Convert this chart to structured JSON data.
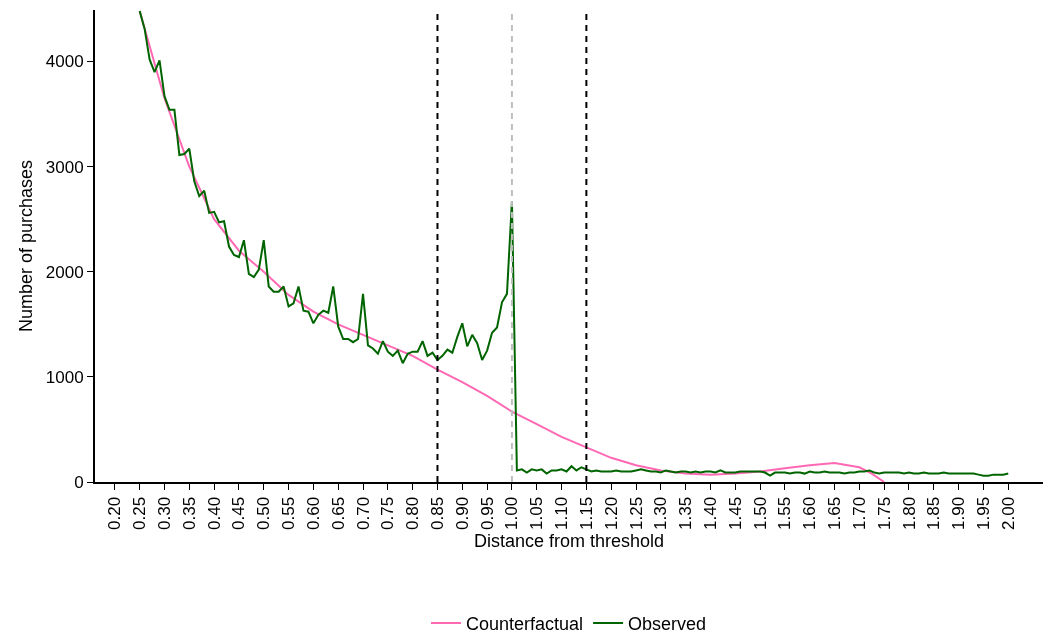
{
  "chart_data": {
    "type": "line",
    "xlabel": "Distance from threshold",
    "ylabel": "Number of purchases",
    "xlim": [
      0.16,
      2.07
    ],
    "ylim": [
      0,
      4490
    ],
    "xticks": [
      {
        "value": 0.2,
        "label": "0.20"
      },
      {
        "value": 0.25,
        "label": "0.25"
      },
      {
        "value": 0.3,
        "label": "0.30"
      },
      {
        "value": 0.35,
        "label": "0.35"
      },
      {
        "value": 0.4,
        "label": "0.40"
      },
      {
        "value": 0.45,
        "label": "0.45"
      },
      {
        "value": 0.5,
        "label": "0.50"
      },
      {
        "value": 0.55,
        "label": "0.55"
      },
      {
        "value": 0.6,
        "label": "0.60"
      },
      {
        "value": 0.65,
        "label": "0.65"
      },
      {
        "value": 0.7,
        "label": "0.70"
      },
      {
        "value": 0.75,
        "label": "0.75"
      },
      {
        "value": 0.8,
        "label": "0.80"
      },
      {
        "value": 0.85,
        "label": "0.85"
      },
      {
        "value": 0.9,
        "label": "0.90"
      },
      {
        "value": 0.95,
        "label": "0.95"
      },
      {
        "value": 1.0,
        "label": "1.00"
      },
      {
        "value": 1.05,
        "label": "1.05"
      },
      {
        "value": 1.1,
        "label": "1.10"
      },
      {
        "value": 1.15,
        "label": "1.15"
      },
      {
        "value": 1.2,
        "label": "1.20"
      },
      {
        "value": 1.25,
        "label": "1.25"
      },
      {
        "value": 1.3,
        "label": "1.30"
      },
      {
        "value": 1.35,
        "label": "1.35"
      },
      {
        "value": 1.4,
        "label": "1.40"
      },
      {
        "value": 1.45,
        "label": "1.45"
      },
      {
        "value": 1.5,
        "label": "1.50"
      },
      {
        "value": 1.55,
        "label": "1.55"
      },
      {
        "value": 1.6,
        "label": "1.60"
      },
      {
        "value": 1.65,
        "label": "1.65"
      },
      {
        "value": 1.7,
        "label": "1.70"
      },
      {
        "value": 1.75,
        "label": "1.75"
      },
      {
        "value": 1.8,
        "label": "1.80"
      },
      {
        "value": 1.85,
        "label": "1.85"
      },
      {
        "value": 1.9,
        "label": "1.90"
      },
      {
        "value": 1.95,
        "label": "1.95"
      },
      {
        "value": 2.0,
        "label": "2.00"
      }
    ],
    "yticks": [
      0,
      1000,
      2000,
      3000,
      4000
    ],
    "legend": "bottom",
    "series": [
      {
        "name": "Counterfactual",
        "color": "#ff69b4",
        "x": [
          0.25,
          0.3,
          0.35,
          0.4,
          0.45,
          0.5,
          0.55,
          0.6,
          0.65,
          0.7,
          0.75,
          0.8,
          0.85,
          0.9,
          0.95,
          1.0,
          1.05,
          1.1,
          1.15,
          1.2,
          1.25,
          1.3,
          1.35,
          1.4,
          1.45,
          1.5,
          1.55,
          1.6,
          1.65,
          1.7,
          1.725,
          1.75
        ],
        "values": [
          4480,
          3650,
          3000,
          2500,
          2200,
          2000,
          1780,
          1620,
          1500,
          1400,
          1300,
          1200,
          1070,
          950,
          820,
          670,
          550,
          430,
          330,
          230,
          160,
          110,
          80,
          70,
          80,
          100,
          130,
          160,
          180,
          140,
          80,
          0
        ]
      },
      {
        "name": "Observed",
        "color": "#006400",
        "x": [
          0.25,
          0.26,
          0.27,
          0.28,
          0.29,
          0.3,
          0.31,
          0.32,
          0.33,
          0.34,
          0.35,
          0.36,
          0.37,
          0.38,
          0.39,
          0.4,
          0.41,
          0.42,
          0.43,
          0.44,
          0.45,
          0.46,
          0.47,
          0.48,
          0.49,
          0.5,
          0.51,
          0.52,
          0.53,
          0.54,
          0.55,
          0.56,
          0.57,
          0.58,
          0.59,
          0.6,
          0.61,
          0.62,
          0.63,
          0.64,
          0.65,
          0.66,
          0.67,
          0.68,
          0.69,
          0.7,
          0.71,
          0.72,
          0.73,
          0.74,
          0.75,
          0.76,
          0.77,
          0.78,
          0.79,
          0.8,
          0.81,
          0.82,
          0.83,
          0.84,
          0.85,
          0.86,
          0.87,
          0.88,
          0.89,
          0.9,
          0.91,
          0.92,
          0.93,
          0.94,
          0.95,
          0.96,
          0.97,
          0.98,
          0.99,
          1.0,
          1.01,
          1.02,
          1.03,
          1.04,
          1.05,
          1.06,
          1.07,
          1.08,
          1.09,
          1.1,
          1.11,
          1.12,
          1.13,
          1.14,
          1.15,
          1.16,
          1.17,
          1.18,
          1.19,
          1.2,
          1.21,
          1.22,
          1.23,
          1.24,
          1.25,
          1.26,
          1.27,
          1.28,
          1.29,
          1.3,
          1.31,
          1.32,
          1.33,
          1.34,
          1.35,
          1.36,
          1.37,
          1.38,
          1.39,
          1.4,
          1.41,
          1.42,
          1.43,
          1.44,
          1.45,
          1.46,
          1.47,
          1.48,
          1.49,
          1.5,
          1.51,
          1.52,
          1.53,
          1.54,
          1.55,
          1.56,
          1.57,
          1.58,
          1.59,
          1.6,
          1.61,
          1.62,
          1.63,
          1.64,
          1.65,
          1.66,
          1.67,
          1.68,
          1.69,
          1.7,
          1.71,
          1.72,
          1.73,
          1.74,
          1.75,
          1.76,
          1.77,
          1.78,
          1.79,
          1.8,
          1.81,
          1.82,
          1.83,
          1.84,
          1.85,
          1.86,
          1.87,
          1.88,
          1.89,
          1.9,
          1.91,
          1.92,
          1.93,
          1.94,
          1.95,
          1.96,
          1.97,
          1.98,
          1.99,
          2.0
        ],
        "values": [
          4480,
          4310,
          4020,
          3900,
          4010,
          3670,
          3540,
          3540,
          3110,
          3120,
          3170,
          2860,
          2720,
          2770,
          2560,
          2570,
          2470,
          2480,
          2240,
          2160,
          2140,
          2300,
          1980,
          1950,
          2020,
          2300,
          1860,
          1810,
          1810,
          1860,
          1670,
          1700,
          1860,
          1630,
          1620,
          1510,
          1590,
          1630,
          1610,
          1860,
          1480,
          1360,
          1360,
          1330,
          1360,
          1790,
          1300,
          1270,
          1220,
          1340,
          1240,
          1200,
          1250,
          1130,
          1220,
          1240,
          1240,
          1340,
          1200,
          1230,
          1160,
          1200,
          1260,
          1230,
          1380,
          1510,
          1290,
          1400,
          1320,
          1160,
          1250,
          1420,
          1470,
          1710,
          1790,
          2670,
          110,
          120,
          90,
          120,
          110,
          120,
          80,
          110,
          110,
          120,
          100,
          150,
          110,
          140,
          120,
          100,
          110,
          100,
          100,
          100,
          110,
          100,
          100,
          100,
          110,
          120,
          110,
          100,
          100,
          90,
          110,
          100,
          90,
          100,
          100,
          90,
          100,
          90,
          100,
          100,
          90,
          110,
          90,
          90,
          90,
          100,
          100,
          100,
          100,
          100,
          90,
          60,
          90,
          90,
          90,
          80,
          90,
          90,
          80,
          100,
          90,
          90,
          100,
          90,
          90,
          90,
          80,
          90,
          90,
          100,
          100,
          110,
          90,
          80,
          90,
          90,
          90,
          90,
          80,
          90,
          80,
          80,
          90,
          80,
          80,
          80,
          90,
          80,
          80,
          80,
          80,
          80,
          80,
          70,
          60,
          60,
          70,
          70,
          70,
          80
        ]
      }
    ],
    "ref_lines": [
      {
        "axis": "x",
        "value": 0.85,
        "color": "#000000",
        "line_style": "dashed"
      },
      {
        "axis": "x",
        "value": 1.0,
        "color": "#bebebe",
        "line_style": "dashed"
      },
      {
        "axis": "x",
        "value": 1.15,
        "color": "#000000",
        "line_style": "dashed"
      }
    ]
  }
}
